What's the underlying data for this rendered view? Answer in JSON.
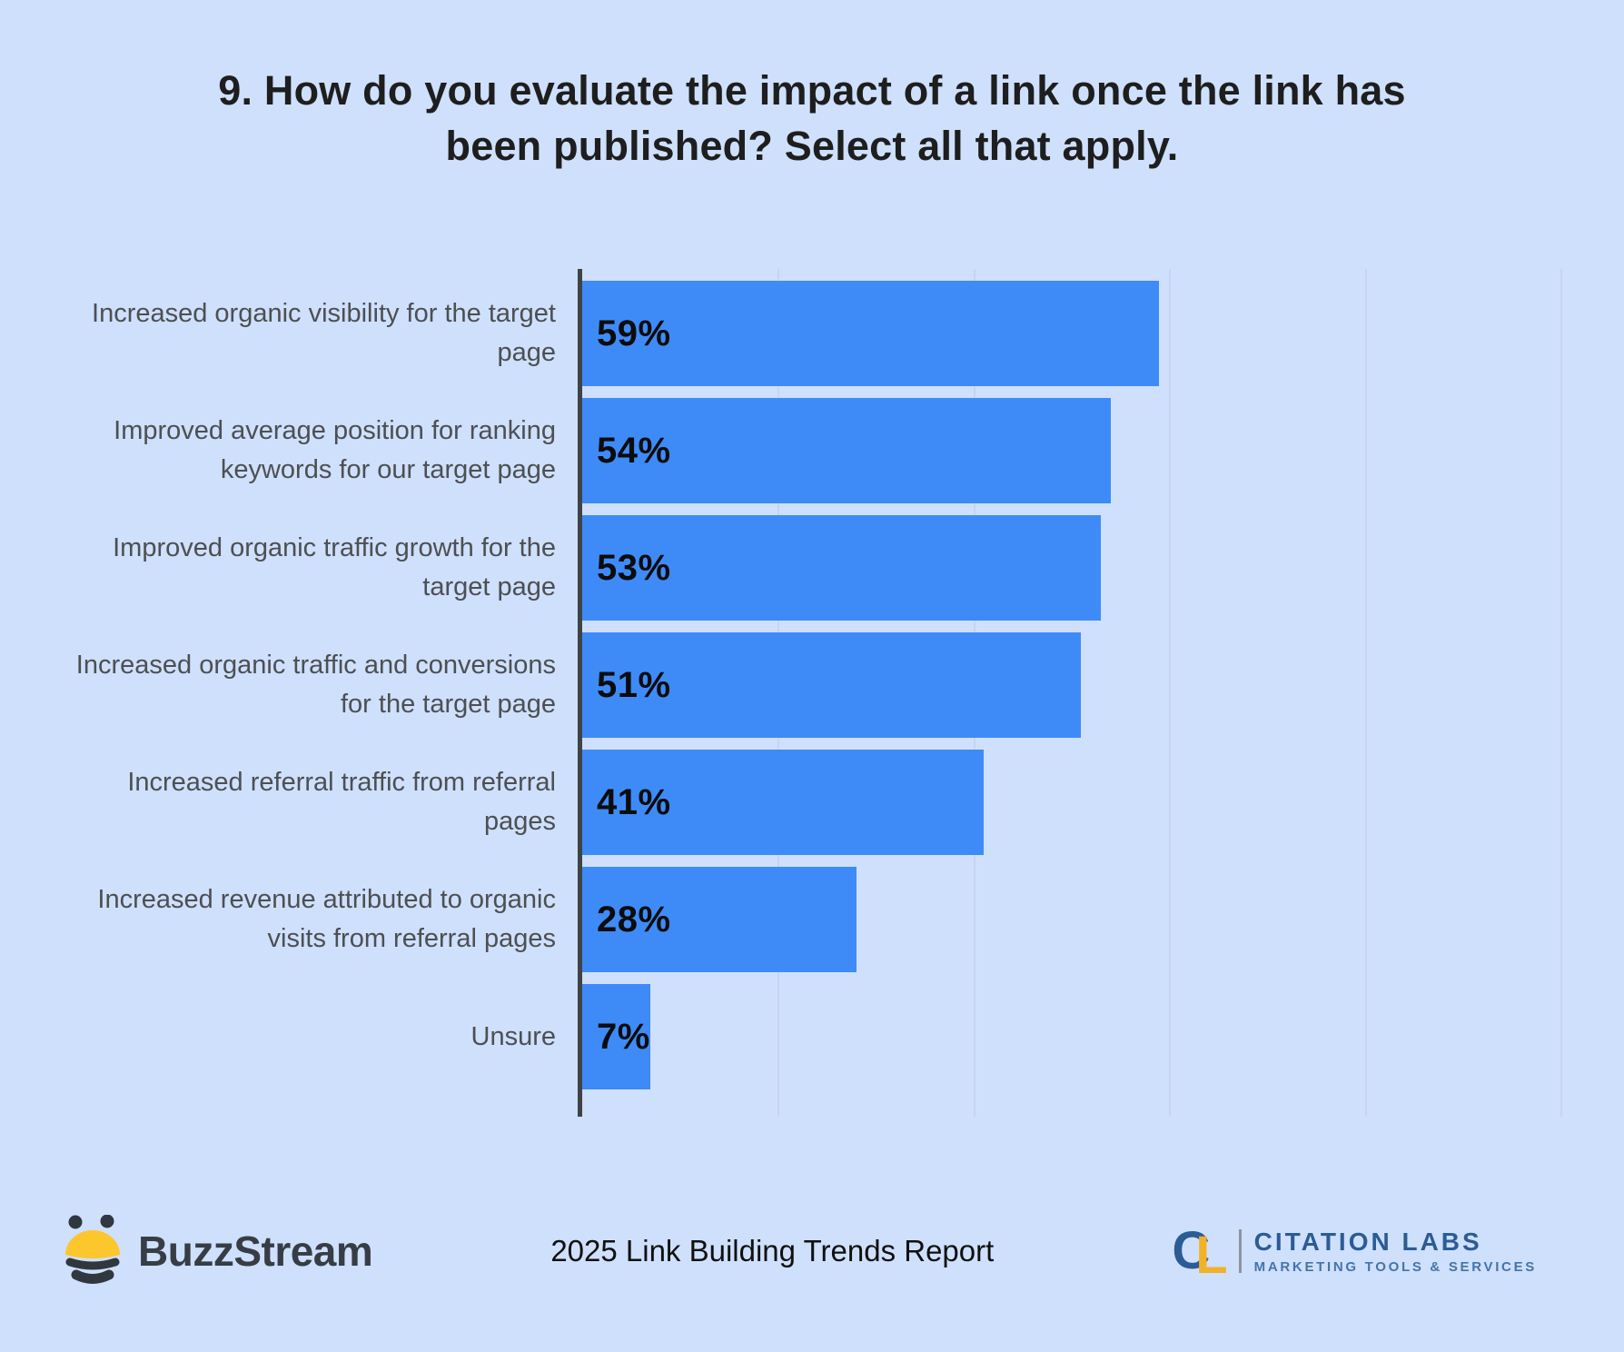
{
  "title": {
    "line1": "9. How do you evaluate the impact of a link once the link has",
    "line2": "been published? Select all that apply."
  },
  "chart_data": {
    "type": "bar",
    "orientation": "horizontal",
    "title": "9. How do you evaluate the impact of a link once the link has been published? Select all that apply.",
    "categories": [
      "Increased organic visibility for the target page",
      "Improved average position for ranking keywords for our target page",
      "Improved organic traffic growth for the target page",
      "Increased organic traffic and conversions for the target page",
      "Increased referral traffic from referral pages",
      "Increased revenue attributed to organic visits from referral pages",
      "Unsure"
    ],
    "values": [
      59,
      54,
      53,
      51,
      41,
      28,
      7
    ],
    "value_labels": [
      "59%",
      "54%",
      "53%",
      "51%",
      "41%",
      "28%",
      "7%"
    ],
    "xlabel": "",
    "ylabel": "",
    "xlim": [
      0,
      100
    ],
    "grid": true,
    "grid_step_percent": 20,
    "legend": "none",
    "value_label_position": "inside-left",
    "colors": {
      "background": "#cfe0fc",
      "bar": "#3e8bf8",
      "gridline": "#c6d5f0",
      "axis": "#3f4347",
      "category_label": "#4d4f52",
      "value_label": "#0c0c0c",
      "title": "#1e1e1e"
    }
  },
  "footer": {
    "buzzstream_wordmark": "BuzzStream",
    "report_title": "2025 Link Building Trends Report",
    "citation_labs": {
      "monogram_c": "C",
      "monogram_l": "L",
      "name": "CITATION LABS",
      "tagline": "MARKETING TOOLS & SERVICES"
    },
    "icons": {
      "bee": "buzzstream-bee-icon",
      "monogram": "citation-labs-monogram"
    },
    "brand_colors": {
      "bee_yellow": "#fcc62d",
      "bee_dark": "#31373f",
      "buzzstream_text": "#373d45",
      "citation_blue": "#2b5c95",
      "citation_light_blue": "#4474ab",
      "citation_yellow": "#f1b22a"
    }
  }
}
